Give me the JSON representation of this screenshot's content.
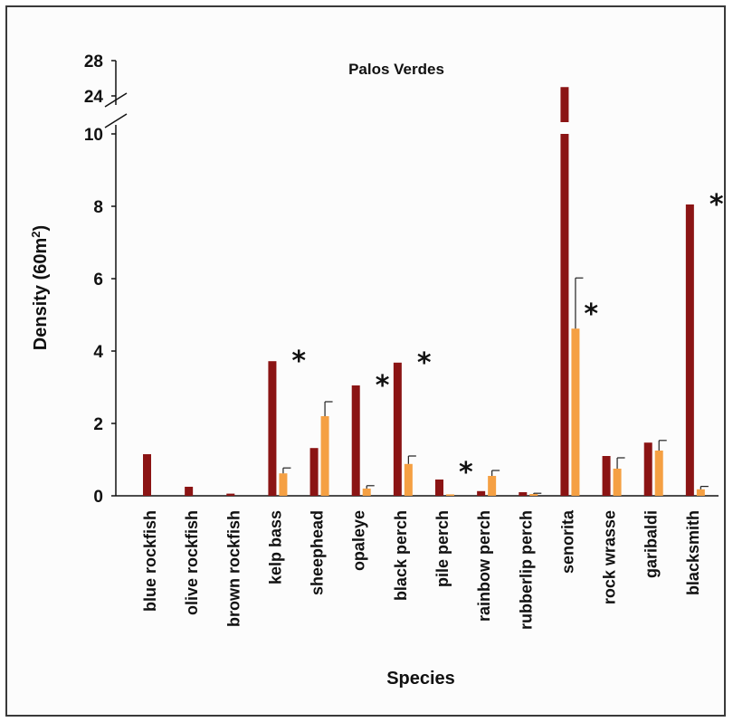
{
  "chart_data": {
    "type": "bar",
    "title": "Palos Verdes",
    "xlabel": "Species",
    "ylabel": "Density (60m",
    "ylabel_sup": "2",
    "ylabel_close": ")",
    "ylim": [
      0,
      28
    ],
    "axis_break": {
      "lower_max": 10,
      "upper_min": 24,
      "upper_max": 28
    },
    "yticks": [
      0,
      2,
      4,
      6,
      8,
      10,
      24,
      28
    ],
    "series_colors": [
      "#8b1414",
      "#f5a043"
    ],
    "categories": [
      "blue rockfish",
      "olive rockfish",
      "brown rockfish",
      "kelp bass",
      "sheephead",
      "opaleye",
      "black perch",
      "pile perch",
      "rainbow perch",
      "rubberlip perch",
      "senorita",
      "rock wrasse",
      "garibaldi",
      "blacksmith"
    ],
    "series": [
      {
        "values": [
          1.15,
          0.25,
          0.06,
          3.72,
          1.32,
          3.05,
          3.68,
          0.45,
          0.13,
          0.1,
          25.0,
          1.1,
          1.47,
          8.05
        ],
        "errors": [
          0,
          0,
          0,
          0,
          0,
          0,
          0,
          0,
          0,
          0,
          0,
          0,
          0,
          0
        ]
      },
      {
        "values": [
          0,
          0,
          0,
          0.62,
          2.2,
          0.2,
          0.88,
          0.04,
          0.55,
          0.05,
          4.62,
          0.75,
          1.25,
          0.18
        ],
        "errors": [
          0,
          0,
          0,
          0.15,
          0.4,
          0.08,
          0.22,
          0,
          0.15,
          0.02,
          1.4,
          0.3,
          0.28,
          0.08
        ]
      }
    ],
    "significance_marker": "*",
    "significant": [
      3,
      5,
      6,
      7,
      10,
      13
    ],
    "grid": false,
    "legend": "none"
  }
}
